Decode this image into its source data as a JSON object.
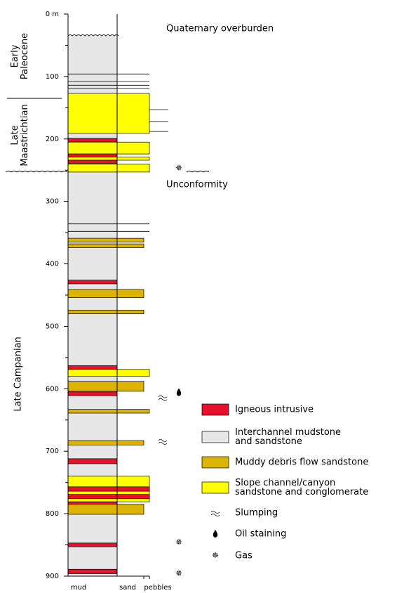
{
  "axis": {
    "ticks": [
      {
        "value": 0,
        "label": "0 m"
      },
      100,
      200,
      300,
      400,
      500,
      600,
      700,
      800,
      900
    ],
    "minor_ticks": [
      50,
      150,
      250,
      350,
      450,
      550,
      650,
      750,
      850
    ],
    "range": [
      0,
      900
    ]
  },
  "overburden": {
    "label": "Quaternary overburden",
    "base": 35
  },
  "ages": [
    {
      "label": "Early Paleocene",
      "top": 0,
      "base": 135
    },
    {
      "label": "Late Maastrichtian",
      "top": 135,
      "base": 253
    },
    {
      "label": "Late Campanian",
      "top": 253,
      "base": 900
    }
  ],
  "unconformity": {
    "label": "Unconformity",
    "depth": 253
  },
  "columns": [
    "mud",
    "sand",
    "pebbles"
  ],
  "thin_beds": [
    96,
    108,
    114,
    119,
    153,
    172,
    188,
    336,
    348
  ],
  "beds": [
    {
      "lithology": "slope",
      "top": 127,
      "base": 191,
      "grain": "pebbles"
    },
    {
      "lithology": "igneous",
      "top": 199,
      "base": 204,
      "grain": "mud"
    },
    {
      "lithology": "slope",
      "top": 205,
      "base": 224,
      "grain": "pebbles"
    },
    {
      "lithology": "igneous",
      "top": 224,
      "base": 229,
      "grain": "mud"
    },
    {
      "lithology": "slope",
      "top": 229,
      "base": 234,
      "grain": "pebbles"
    },
    {
      "lithology": "igneous",
      "top": 234,
      "base": 239,
      "grain": "mud"
    },
    {
      "lithology": "slope",
      "top": 240,
      "base": 253,
      "grain": "pebbles"
    },
    {
      "lithology": "muddy",
      "top": 359,
      "base": 365,
      "grain": "sand"
    },
    {
      "lithology": "muddy",
      "top": 368,
      "base": 374,
      "grain": "sand"
    },
    {
      "lithology": "igneous",
      "top": 426,
      "base": 432,
      "grain": "mud"
    },
    {
      "lithology": "muddy",
      "top": 441,
      "base": 454,
      "grain": "sand"
    },
    {
      "lithology": "muddy",
      "top": 474,
      "base": 480,
      "grain": "sand"
    },
    {
      "lithology": "igneous",
      "top": 563,
      "base": 569,
      "grain": "mud"
    },
    {
      "lithology": "slope",
      "top": 569,
      "base": 580,
      "grain": "pebbles"
    },
    {
      "lithology": "muddy",
      "top": 588,
      "base": 604,
      "grain": "sand"
    },
    {
      "lithology": "igneous",
      "top": 605,
      "base": 611,
      "grain": "mud"
    },
    {
      "lithology": "muddy",
      "top": 633,
      "base": 639,
      "grain": "pebbles"
    },
    {
      "lithology": "muddy",
      "top": 683,
      "base": 690,
      "grain": "sand"
    },
    {
      "lithology": "igneous",
      "top": 712,
      "base": 720,
      "grain": "mud"
    },
    {
      "lithology": "slope",
      "top": 740,
      "base": 781,
      "grain": "pebbles"
    },
    {
      "lithology": "igneous",
      "top": 757,
      "base": 764,
      "grain": "pebbles"
    },
    {
      "lithology": "igneous",
      "top": 769,
      "base": 776,
      "grain": "pebbles"
    },
    {
      "lithology": "igneous",
      "top": 781,
      "base": 787,
      "grain": "mud"
    },
    {
      "lithology": "muddy",
      "top": 785,
      "base": 801,
      "grain": "sand"
    },
    {
      "lithology": "igneous",
      "top": 847,
      "base": 853,
      "grain": "mud"
    },
    {
      "lithology": "igneous",
      "top": 889,
      "base": 896,
      "grain": "mud"
    }
  ],
  "markers": [
    {
      "kind": "gas",
      "depth": 247
    },
    {
      "kind": "oil",
      "depth": 606
    },
    {
      "kind": "slumping",
      "depth": 614
    },
    {
      "kind": "slumping",
      "depth": 684
    },
    {
      "kind": "gas",
      "depth": 846
    },
    {
      "kind": "gas",
      "depth": 896
    }
  ],
  "legend": [
    {
      "kind": "igneous",
      "label": "Igneous intrusive",
      "color": "#e8102a"
    },
    {
      "kind": "interchannel",
      "label": "Interchannel mudstone\nand sandstone",
      "color": "#e6e6e6"
    },
    {
      "kind": "muddy",
      "label": "Muddy debris flow sandstone",
      "color": "#dcb400"
    },
    {
      "kind": "slope",
      "label": "Slope channel/canyon\nsandstone and conglomerate",
      "color": "#ffff00"
    },
    {
      "kind": "slumping",
      "label": "Slumping"
    },
    {
      "kind": "oil",
      "label": "Oil staining"
    },
    {
      "kind": "gas",
      "label": "Gas"
    }
  ]
}
